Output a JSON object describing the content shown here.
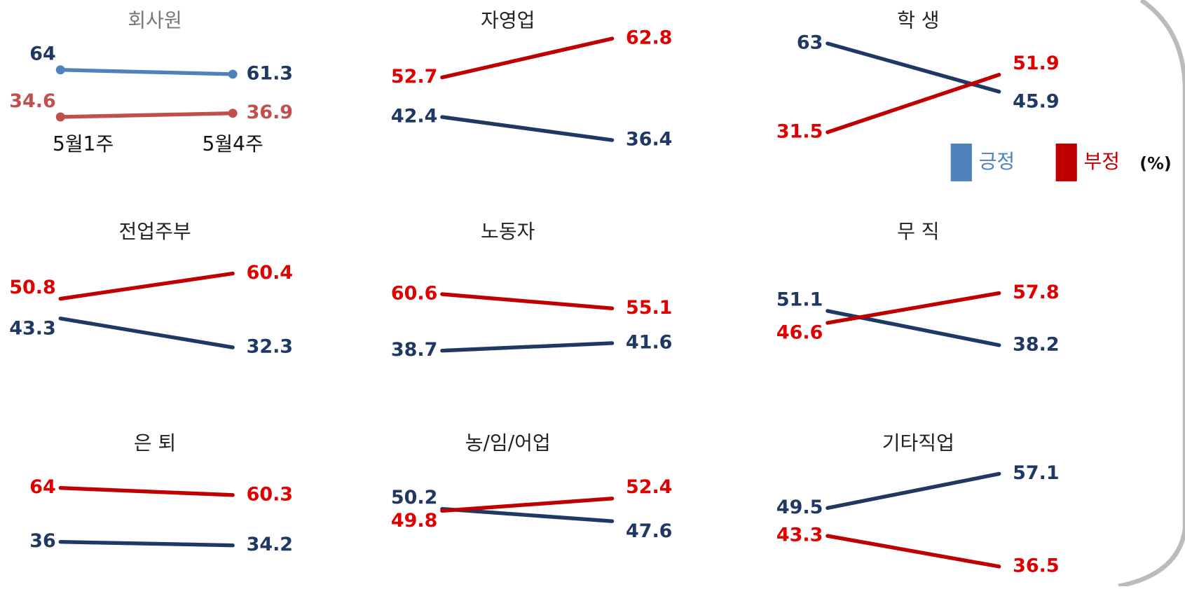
{
  "legend": {
    "entries": [
      {
        "name": "긍정",
        "color": "#4f81bd"
      },
      {
        "name": "부정",
        "color": "#c00000"
      }
    ],
    "unit": "(%)"
  },
  "chart_data": [
    {
      "type": "line",
      "title": "회사원",
      "categories": [
        "5월1주",
        "5월4주"
      ],
      "ylim": [
        18,
        84
      ],
      "markers": true,
      "series": [
        {
          "color": "#4f81bd",
          "values": [
            64,
            61.3
          ]
        },
        {
          "color": "#c0504d",
          "values": [
            34.6,
            36.9
          ]
        }
      ]
    },
    {
      "type": "line",
      "title": "자영업",
      "categories": [
        null,
        null
      ],
      "ylim": [
        35.5,
        63
      ],
      "series": [
        {
          "color": "#1f3864",
          "values": [
            42.4,
            36.4
          ]
        },
        {
          "color": "#c00000",
          "values": [
            52.7,
            62.8
          ]
        }
      ]
    },
    {
      "type": "line",
      "title": "학 생",
      "categories": [
        null,
        null
      ],
      "ylim": [
        27.5,
        65
      ],
      "series": [
        {
          "color": "#1f3864",
          "values": [
            63,
            45.9
          ]
        },
        {
          "color": "#c00000",
          "values": [
            31.5,
            51.9
          ]
        }
      ]
    },
    {
      "type": "line",
      "title": "전업주부",
      "categories": [
        null,
        null
      ],
      "ylim": [
        29.4,
        69.6
      ],
      "series": [
        {
          "color": "#1f3864",
          "values": [
            43.3,
            32.3
          ]
        },
        {
          "color": "#c00000",
          "values": [
            50.8,
            60.4
          ]
        }
      ]
    },
    {
      "type": "line",
      "title": "노동자",
      "categories": [
        null,
        null
      ],
      "ylim": [
        37,
        78
      ],
      "series": [
        {
          "color": "#1f3864",
          "values": [
            38.7,
            41.6
          ]
        },
        {
          "color": "#c00000",
          "values": [
            60.6,
            55.1
          ]
        }
      ]
    },
    {
      "type": "line",
      "title": "무 직",
      "categories": [
        null,
        null
      ],
      "ylim": [
        34.5,
        74.3
      ],
      "series": [
        {
          "color": "#1f3864",
          "values": [
            51.1,
            38.2
          ]
        },
        {
          "color": "#c00000",
          "values": [
            46.6,
            57.8
          ]
        }
      ]
    },
    {
      "type": "line",
      "title": "은 퇴",
      "categories": [
        null,
        null
      ],
      "ylim": [
        23.2,
        78.1
      ],
      "series": [
        {
          "color": "#1f3864",
          "values": [
            36,
            34.2
          ]
        },
        {
          "color": "#c00000",
          "values": [
            64,
            60.3
          ]
        }
      ]
    },
    {
      "type": "line",
      "title": "농/임/어업",
      "categories": [
        null,
        null
      ],
      "ylim": [
        38,
        60.4
      ],
      "series": [
        {
          "color": "#1f3864",
          "values": [
            50.2,
            47.6
          ]
        },
        {
          "color": "#c00000",
          "values": [
            49.8,
            52.4
          ]
        }
      ]
    },
    {
      "type": "line",
      "title": "기타직업",
      "categories": [
        null,
        null
      ],
      "ylim": [
        36.5,
        60
      ],
      "series": [
        {
          "color": "#1f3864",
          "values": [
            49.5,
            57.1
          ]
        },
        {
          "color": "#c00000",
          "values": [
            43.3,
            36.5
          ]
        }
      ]
    }
  ]
}
